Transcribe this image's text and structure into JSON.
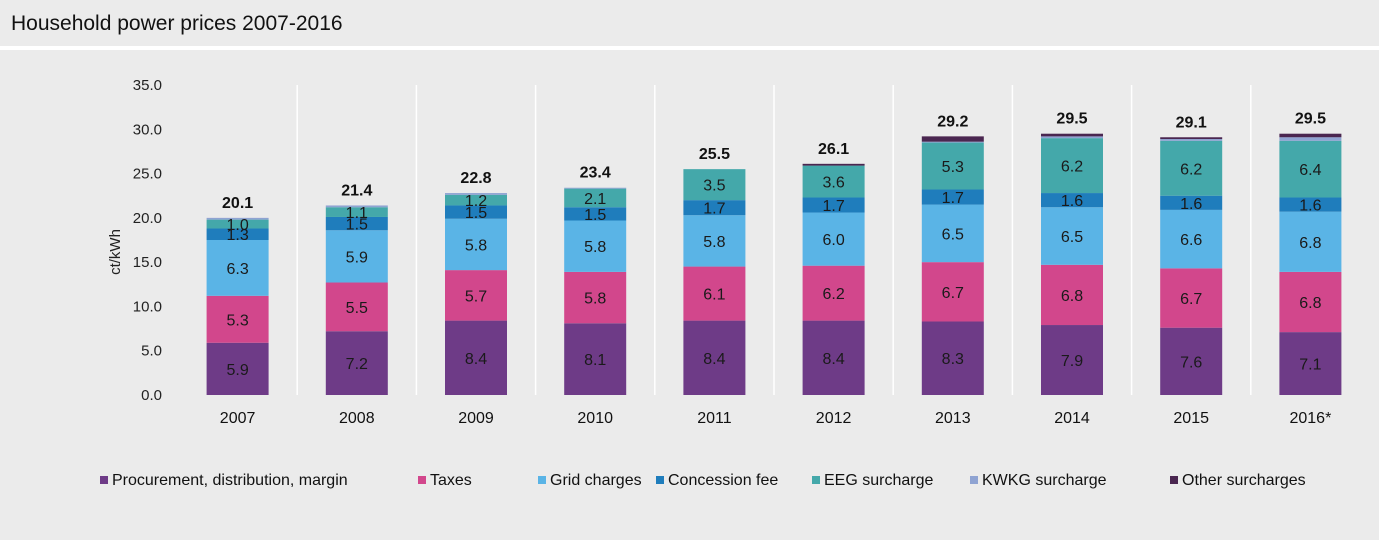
{
  "chart_data": {
    "type": "bar",
    "stacked": true,
    "title": "Household power prices 2007-2016",
    "ylabel": "ct/kWh",
    "xlabel": "",
    "ylim": [
      0,
      35
    ],
    "yticks": [
      "0.0",
      "5.0",
      "10.0",
      "15.0",
      "20.0",
      "25.0",
      "30.0",
      "35.0"
    ],
    "grid": "vertical separators between years",
    "legend_position": "bottom",
    "categories": [
      "2007",
      "2008",
      "2009",
      "2010",
      "2011",
      "2012",
      "2013",
      "2014",
      "2015",
      "2016*"
    ],
    "totals": [
      "20.1",
      "21.4",
      "22.8",
      "23.4",
      "25.5",
      "26.1",
      "29.2",
      "29.5",
      "29.1",
      "29.5"
    ],
    "series": [
      {
        "name": "Procurement, distribution, margin",
        "color": "#6e3b87",
        "values": [
          5.9,
          7.2,
          8.4,
          8.1,
          8.4,
          8.4,
          8.3,
          7.9,
          7.6,
          7.1
        ],
        "labels": [
          "5.9",
          "7.2",
          "8.4",
          "8.1",
          "8.4",
          "8.4",
          "8.3",
          "7.9",
          "7.6",
          "7.1"
        ]
      },
      {
        "name": "Taxes",
        "color": "#d2478c",
        "values": [
          5.3,
          5.5,
          5.7,
          5.8,
          6.1,
          6.2,
          6.7,
          6.8,
          6.7,
          6.8
        ],
        "labels": [
          "5.3",
          "5.5",
          "5.7",
          "5.8",
          "6.1",
          "6.2",
          "6.7",
          "6.8",
          "6.7",
          "6.8"
        ]
      },
      {
        "name": "Grid charges",
        "color": "#5ab4e6",
        "values": [
          6.3,
          5.9,
          5.8,
          5.8,
          5.8,
          6.0,
          6.5,
          6.5,
          6.6,
          6.8
        ],
        "labels": [
          "6.3",
          "5.9",
          "5.8",
          "5.8",
          "5.8",
          "6.0",
          "6.5",
          "6.5",
          "6.6",
          "6.8"
        ]
      },
      {
        "name": "Concession fee",
        "color": "#1f7dbc",
        "values": [
          1.3,
          1.5,
          1.5,
          1.5,
          1.7,
          1.7,
          1.7,
          1.6,
          1.6,
          1.6
        ],
        "labels": [
          "1.3",
          "1.5",
          "1.5",
          "1.5",
          "1.7",
          "1.7",
          "1.7",
          "1.6",
          "1.6",
          "1.6"
        ]
      },
      {
        "name": "EEG surcharge",
        "color": "#44a8aa",
        "values": [
          1.0,
          1.1,
          1.2,
          2.1,
          3.5,
          3.6,
          5.3,
          6.2,
          6.2,
          6.4
        ],
        "labels": [
          "1.0",
          "1.1",
          "1.2",
          "2.1",
          "3.5",
          "3.6",
          "5.3",
          "6.2",
          "6.2",
          "6.4"
        ]
      },
      {
        "name": "KWKG surcharge",
        "color": "#8fa3d2",
        "values": [
          0.2,
          0.2,
          0.2,
          0.1,
          0.0,
          0.0,
          0.1,
          0.2,
          0.2,
          0.4
        ],
        "labels": [
          "",
          "",
          "",
          "",
          "",
          "",
          "",
          "",
          "",
          ""
        ]
      },
      {
        "name": "Other surcharges",
        "color": "#4a2650",
        "values": [
          0.0,
          0.0,
          0.0,
          0.0,
          0.0,
          0.2,
          0.6,
          0.3,
          0.2,
          0.4
        ],
        "labels": [
          "",
          "",
          "",
          "",
          "",
          "",
          "",
          "",
          "",
          ""
        ]
      }
    ]
  }
}
